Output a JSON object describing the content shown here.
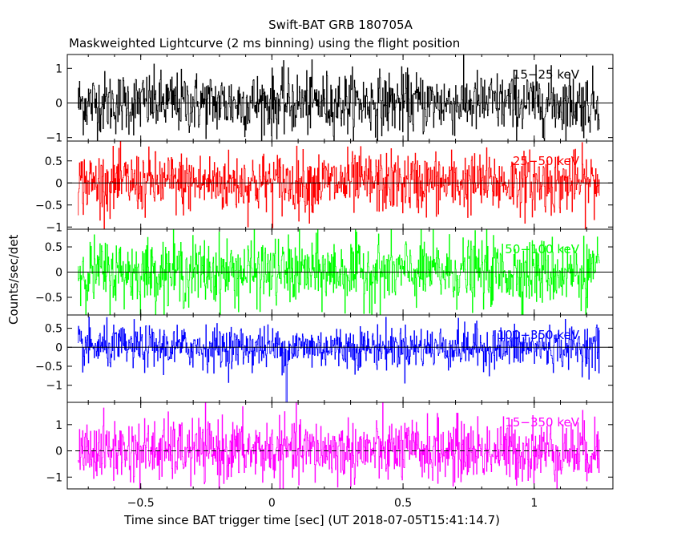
{
  "chart_data": {
    "type": "line",
    "title": "Swift-BAT GRB 180705A",
    "subtitle": "Maskweighted Lightcurve (2 ms binning) using the flight position",
    "xlabel": "Time since BAT trigger time [sec] (UT 2018-07-05T15:41:14.7)",
    "ylabel": "Counts/sec/det",
    "xlim": [
      -0.78,
      1.3
    ],
    "xticks": [
      -0.5,
      0,
      0.5,
      1
    ],
    "xticklabels": [
      "−0.5",
      "0",
      "0.5",
      "1"
    ],
    "panels": [
      {
        "name": "15−25 keV",
        "color": "#000000",
        "ylim": [
          -1.1,
          1.4
        ],
        "yticks": [
          1,
          0,
          -1
        ],
        "yticklabels": [
          "1",
          "0",
          "−1"
        ],
        "x_range": [
          -0.74,
          1.25
        ],
        "amplitude": 0.45,
        "mean": 0.0
      },
      {
        "name": "25−50 keV",
        "color": "#ff0000",
        "ylim": [
          -1.05,
          0.95
        ],
        "yticks": [
          0.5,
          0,
          -0.5,
          -1
        ],
        "yticklabels": [
          "0.5",
          "0",
          "−0.5",
          "−1"
        ],
        "x_range": [
          -0.74,
          1.25
        ],
        "amplitude": 0.35,
        "mean": 0.0
      },
      {
        "name": "50−100 keV",
        "color": "#00ff00",
        "ylim": [
          -0.85,
          0.85
        ],
        "yticks": [
          0.5,
          0,
          -0.5
        ],
        "yticklabels": [
          "0.5",
          "0",
          "−0.5"
        ],
        "x_range": [
          -0.74,
          1.25
        ],
        "amplitude": 0.33,
        "mean": 0.0
      },
      {
        "name": "100−350 keV",
        "color": "#0000ff",
        "ylim": [
          -1.45,
          0.85
        ],
        "yticks": [
          0.5,
          0,
          -0.5,
          -1
        ],
        "yticklabels": [
          "0.5",
          "0",
          "−0.5",
          "−1"
        ],
        "x_range": [
          -0.74,
          1.25
        ],
        "amplitude": 0.28,
        "mean": 0.0,
        "dip": {
          "x": 0.055,
          "y": -1.45
        }
      },
      {
        "name": "15−350 keV",
        "color": "#ff00ff",
        "ylim": [
          -1.45,
          1.85
        ],
        "yticks": [
          1,
          0,
          -1
        ],
        "yticklabels": [
          "1",
          "0",
          "−1"
        ],
        "x_range": [
          -0.74,
          1.25
        ],
        "amplitude": 0.6,
        "mean": 0.0
      }
    ]
  }
}
